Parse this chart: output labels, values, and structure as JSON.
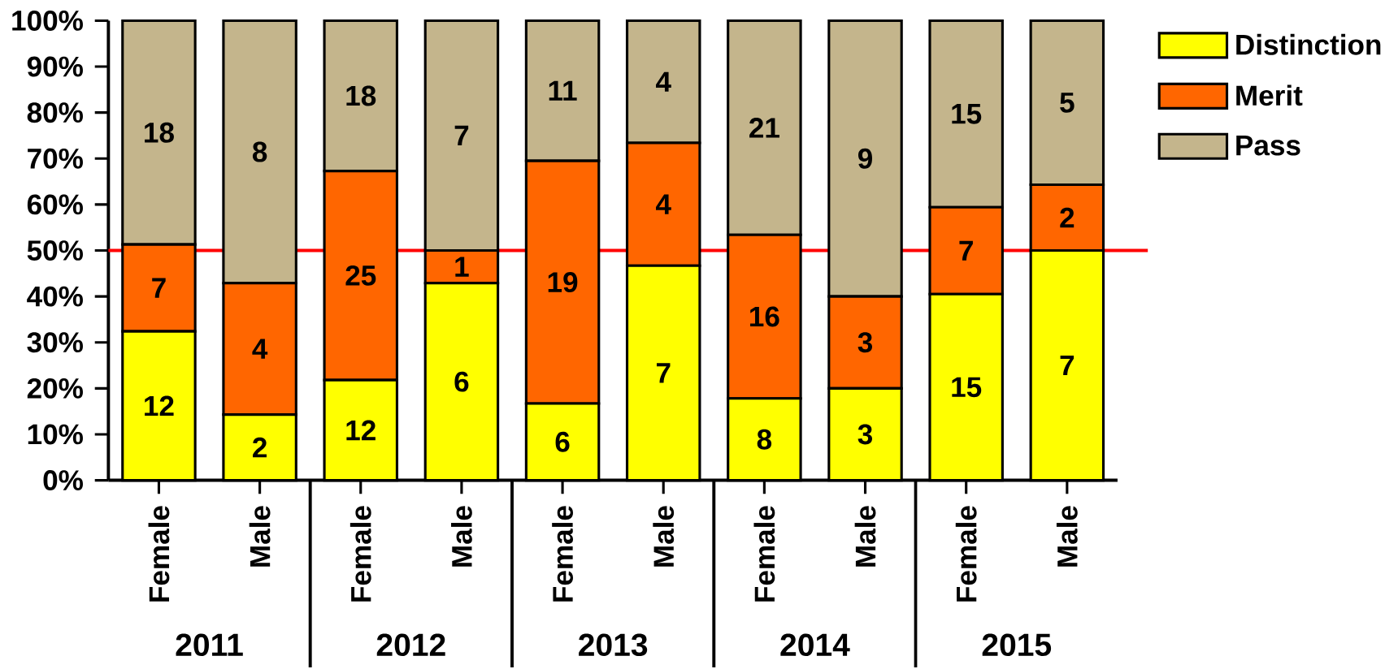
{
  "chart_data": {
    "type": "bar",
    "stacked": true,
    "categories": [
      "Female",
      "Male",
      "Female",
      "Male",
      "Female",
      "Male",
      "Female",
      "Male",
      "Female",
      "Male"
    ],
    "series": [
      {
        "name": "Distinction",
        "color": "#ffff00",
        "values": [
          32.4,
          14.3,
          21.8,
          42.9,
          16.7,
          46.7,
          17.8,
          20.0,
          40.5,
          50.0
        ]
      },
      {
        "name": "Merit",
        "color": "#ff6600",
        "values": [
          18.9,
          28.6,
          45.5,
          7.1,
          52.8,
          26.7,
          35.6,
          20.0,
          18.9,
          14.3
        ]
      },
      {
        "name": "Pass",
        "color": "#c4b58c",
        "values": [
          48.7,
          57.1,
          32.7,
          50.0,
          30.5,
          26.6,
          46.6,
          60.0,
          40.6,
          35.7
        ]
      }
    ],
    "ylim": [
      0,
      100
    ],
    "yticks": [
      {
        "value": 0,
        "label": "0%"
      },
      {
        "value": 10,
        "label": "10%"
      },
      {
        "value": 20,
        "label": "20%"
      },
      {
        "value": 30,
        "label": "30%"
      },
      {
        "value": 40,
        "label": "40%"
      },
      {
        "value": 50,
        "label": "50%"
      },
      {
        "value": 60,
        "label": "60%"
      },
      {
        "value": 70,
        "label": "70%"
      },
      {
        "value": 80,
        "label": "80%"
      },
      {
        "value": 90,
        "label": "90%"
      },
      {
        "value": 100,
        "label": "100%"
      }
    ],
    "ref_lines": [
      {
        "axis": "y",
        "value": 50,
        "color": "#ff0000"
      }
    ],
    "annotations": [
      "2011",
      "2012",
      "2013",
      "2014",
      "2015",
      "12",
      "2",
      "12",
      "6",
      "6",
      "7",
      "8",
      "3",
      "15",
      "7",
      "7",
      "4",
      "25",
      "1",
      "19",
      "4",
      "16",
      "3",
      "7",
      "2",
      "18",
      "8",
      "18",
      "7",
      "11",
      "4",
      "21",
      "9",
      "15",
      "5"
    ],
    "legend": "top right",
    "grid": false
  }
}
